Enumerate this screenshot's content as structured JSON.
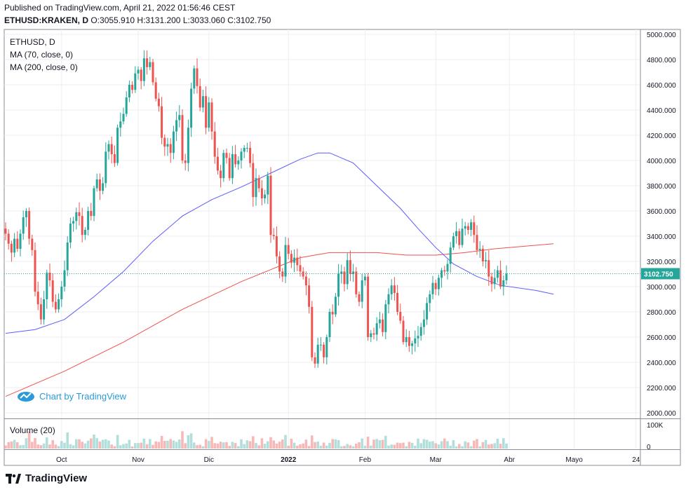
{
  "header": {
    "published": "Published on TradingView.com, April 21, 2022 01:56:46 CEST",
    "symbol": "ETHUSD:KRAKEN, D",
    "o_label": "O:",
    "o_value": "3055.910",
    "h_label": "H:",
    "h_value": "3131.200",
    "l_label": "L:",
    "l_value": "3033.060",
    "c_label": "C:",
    "c_value": "3102.750"
  },
  "legend": {
    "title": "ETHUSD, D",
    "ma70": "MA (70, close, 0)",
    "ma200": "MA (200, close, 0)",
    "volume": "Volume (20)"
  },
  "watermark": {
    "text": "Chart by TradingView"
  },
  "footer": {
    "brand": "TradingView"
  },
  "colors": {
    "up": "#26a69a",
    "down": "#ef5350",
    "ma70": "#5b5bff",
    "ma200": "#f05050",
    "last_price_bg": "#26a69a",
    "vol_up": "#b2dfdb",
    "vol_down": "#f7b9b7"
  },
  "chart_data": {
    "type": "candlestick",
    "symbol": "ETHUSD",
    "interval": "D",
    "x_tick_labels": [
      "Oct",
      "Nov",
      "Dic",
      "2022",
      "Feb",
      "Mar",
      "Abr",
      "Mayo",
      "24"
    ],
    "y_tick_labels": [
      "2000.000",
      "2200.000",
      "2400.000",
      "2600.000",
      "2800.000",
      "3000.000",
      "3200.000",
      "3400.000",
      "3600.000",
      "3800.000",
      "4000.000",
      "4200.000",
      "4400.000",
      "4600.000",
      "4800.000",
      "5000.000"
    ],
    "ylim": [
      1950,
      5020
    ],
    "last_price": 3102.75,
    "last_price_label": "3102.750",
    "volume_ticks": [
      "100K",
      "0"
    ],
    "closes": [
      3420,
      3340,
      3270,
      3380,
      3300,
      3420,
      3550,
      3600,
      3380,
      3290,
      2960,
      2860,
      2740,
      2900,
      3110,
      3050,
      2880,
      2820,
      2900,
      3000,
      3130,
      3350,
      3500,
      3520,
      3590,
      3560,
      3410,
      3450,
      3600,
      3560,
      3780,
      3850,
      3760,
      3820,
      4070,
      4130,
      4050,
      3980,
      4260,
      4310,
      4370,
      4500,
      4600,
      4560,
      4690,
      4720,
      4630,
      4810,
      4740,
      4780,
      4620,
      4490,
      4430,
      4180,
      4110,
      4130,
      4060,
      4230,
      4320,
      4360,
      4000,
      3980,
      4260,
      4570,
      4730,
      4590,
      4420,
      4510,
      4260,
      4460,
      4230,
      4030,
      3920,
      3860,
      4060,
      4020,
      3860,
      4050,
      3970,
      4000,
      4070,
      4100,
      4100,
      3980,
      3710,
      3860,
      3780,
      3700,
      3730,
      3880,
      3410,
      3400,
      3240,
      3120,
      3080,
      3330,
      3260,
      3190,
      3230,
      3170,
      3120,
      3080,
      3010,
      2840,
      2440,
      2390,
      2540,
      2540,
      2440,
      2600,
      2800,
      2780,
      2920,
      3100,
      3120,
      3020,
      3210,
      3100,
      3120,
      2940,
      2880,
      3050,
      3080,
      2600,
      2630,
      2620,
      2710,
      2740,
      2640,
      2860,
      2940,
      3010,
      2950,
      2800,
      2730,
      2560,
      2600,
      2530,
      2550,
      2590,
      2610,
      2680,
      2740,
      2870,
      2940,
      3030,
      2980,
      3070,
      3130,
      3120,
      3180,
      3310,
      3400,
      3440,
      3330,
      3460,
      3480,
      3450,
      3510,
      3410,
      3290,
      3300,
      3200,
      3210,
      3080,
      3020,
      3070,
      3130,
      3000,
      3050,
      3102.75
    ],
    "ma70_approx": [
      [
        0,
        2630
      ],
      [
        10,
        2660
      ],
      [
        20,
        2740
      ],
      [
        30,
        2920
      ],
      [
        40,
        3120
      ],
      [
        50,
        3360
      ],
      [
        60,
        3560
      ],
      [
        70,
        3690
      ],
      [
        80,
        3790
      ],
      [
        90,
        3900
      ],
      [
        100,
        4010
      ],
      [
        106,
        4060
      ],
      [
        110,
        4060
      ],
      [
        118,
        3980
      ],
      [
        126,
        3800
      ],
      [
        134,
        3620
      ],
      [
        140,
        3460
      ],
      [
        146,
        3310
      ],
      [
        152,
        3180
      ],
      [
        160,
        3080
      ],
      [
        168,
        3010
      ],
      [
        180,
        2970
      ],
      [
        186,
        2940
      ]
    ],
    "ma200_approx": [
      [
        0,
        2130
      ],
      [
        20,
        2330
      ],
      [
        40,
        2560
      ],
      [
        60,
        2820
      ],
      [
        80,
        3040
      ],
      [
        100,
        3230
      ],
      [
        110,
        3270
      ],
      [
        126,
        3270
      ],
      [
        136,
        3250
      ],
      [
        146,
        3250
      ],
      [
        156,
        3270
      ],
      [
        166,
        3300
      ],
      [
        176,
        3320
      ],
      [
        186,
        3340
      ]
    ]
  }
}
